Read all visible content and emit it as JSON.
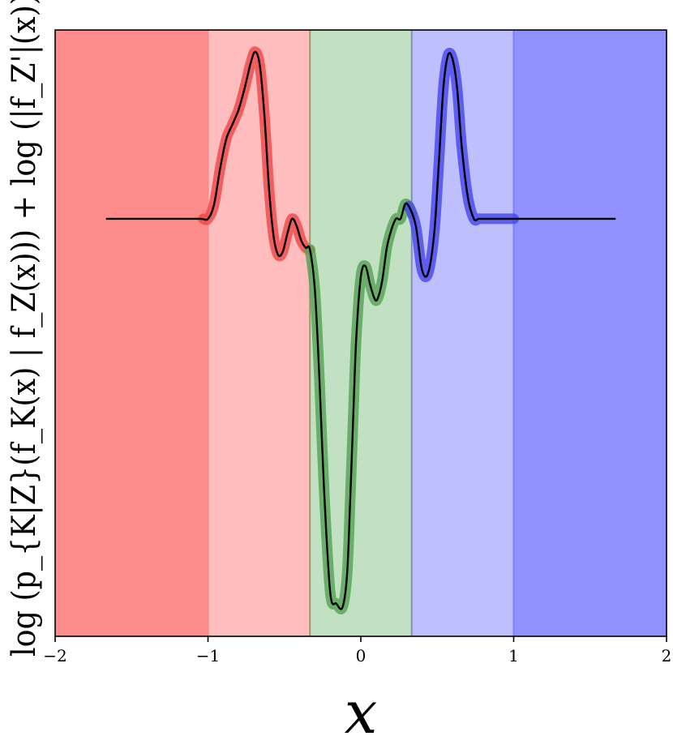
{
  "chart_data": {
    "type": "line",
    "title": "",
    "xlabel": "x",
    "ylabel": "log (p_{K|Z}(f_K(x) | f_Z(x))) + log (|f_Z'|(x))",
    "xlim": [
      -2,
      2
    ],
    "ylim": [
      -1.15,
      0.52
    ],
    "x_ticks": [
      -2,
      -1,
      0,
      1,
      2
    ],
    "x_tick_labels": [
      "−2",
      "−1",
      "0",
      "1",
      "2"
    ],
    "y_ticks_shown": false,
    "grid": false,
    "legend": "none",
    "regions": [
      {
        "x0": -2.0,
        "x1": -1.0,
        "color": "#ff8c8c"
      },
      {
        "x0": -1.0,
        "x1": -0.333,
        "color": "#ffbdbd"
      },
      {
        "x0": -0.333,
        "x1": 0.333,
        "color": "#c2e0c2"
      },
      {
        "x0": 0.333,
        "x1": 1.0,
        "color": "#bfbffe"
      },
      {
        "x0": 1.0,
        "x1": 2.0,
        "color": "#9191ff"
      }
    ],
    "region_boundaries": [
      -1.0,
      -0.333,
      0.333,
      1.0
    ],
    "highlight_segments": [
      {
        "x0": -1.03,
        "x1": -0.333,
        "color": "#ef4848"
      },
      {
        "x0": -0.333,
        "x1": 0.333,
        "color": "#56a456"
      },
      {
        "x0": 0.31,
        "x1": 1.0,
        "color": "#4747ef"
      }
    ],
    "series": [
      {
        "color": "#000000",
        "x": [
          -1.667,
          -1.4,
          -1.2,
          -1.05,
          -1.0,
          -0.96,
          -0.92,
          -0.88,
          -0.84,
          -0.8,
          -0.76,
          -0.72,
          -0.69,
          -0.66,
          -0.63,
          -0.6,
          -0.57,
          -0.54,
          -0.51,
          -0.48,
          -0.45,
          -0.42,
          -0.39,
          -0.36,
          -0.333,
          -0.3,
          -0.27,
          -0.24,
          -0.2,
          -0.16,
          -0.12,
          -0.09,
          -0.07,
          -0.05,
          -0.03,
          0.0,
          0.03,
          0.06,
          0.09,
          0.11,
          0.14,
          0.17,
          0.2,
          0.23,
          0.26,
          0.29,
          0.32,
          0.36,
          0.4,
          0.44,
          0.48,
          0.51,
          0.54,
          0.57,
          0.6,
          0.63,
          0.66,
          0.7,
          0.74,
          0.77,
          0.8,
          0.83,
          0.86,
          0.89,
          0.92,
          0.95,
          0.98,
          1.0,
          1.2,
          1.4,
          1.667
        ],
        "y": [
          0.0,
          0.0,
          0.0,
          0.0,
          0.0,
          0.04,
          0.14,
          0.22,
          0.26,
          0.3,
          0.36,
          0.43,
          0.46,
          0.42,
          0.28,
          0.08,
          -0.05,
          -0.1,
          -0.09,
          -0.04,
          -0.0,
          -0.02,
          -0.06,
          -0.08,
          -0.085,
          -0.2,
          -0.45,
          -0.75,
          -1.03,
          -1.06,
          -1.07,
          -0.98,
          -0.78,
          -0.55,
          -0.33,
          -0.16,
          -0.13,
          -0.18,
          -0.22,
          -0.22,
          -0.17,
          -0.08,
          -0.03,
          0.0,
          0.0,
          0.04,
          0.03,
          -0.02,
          -0.14,
          -0.15,
          -0.04,
          0.15,
          0.36,
          0.45,
          0.44,
          0.36,
          0.2,
          0.06,
          0.0,
          0.0,
          0.0,
          0.0,
          0.0,
          0.0,
          0.0,
          0.0,
          0.0,
          0.0,
          0.0,
          0.0,
          0.0
        ]
      }
    ]
  }
}
